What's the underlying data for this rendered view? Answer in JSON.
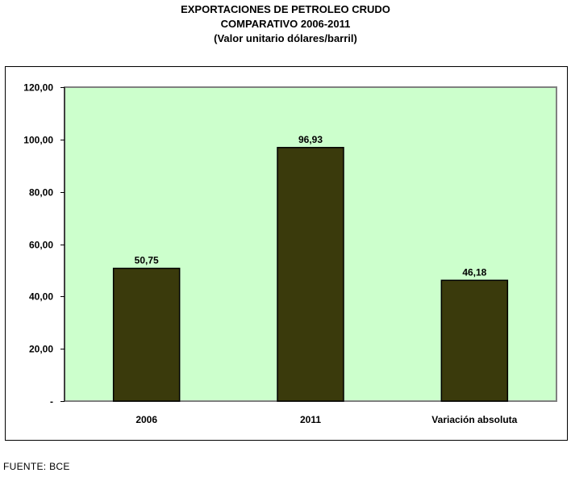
{
  "chart_data": {
    "type": "bar",
    "title": "EXPORTACIONES DE PETROLEO CRUDO",
    "subtitle": "COMPARATIVO 2006-2011",
    "subtitle2": "(Valor unitario dólares/barril)",
    "categories": [
      "2006",
      "2011",
      "Variación absoluta"
    ],
    "values": [
      50.75,
      96.93,
      46.18
    ],
    "data_labels": [
      "50,75",
      "96,93",
      "46,18"
    ],
    "ylim": [
      0,
      120
    ],
    "yticks": [
      0,
      20,
      40,
      60,
      80,
      100,
      120
    ],
    "ytick_labels": [
      "-",
      "20,00",
      "40,00",
      "60,00",
      "80,00",
      "100,00",
      "120,00"
    ],
    "xlabel": "",
    "ylabel": "",
    "grid": false,
    "legend": "none",
    "colors": {
      "bar_fill": "#3a3a0c",
      "bar_stroke": "#000000",
      "plot_background": "#ccffcc",
      "plot_border": "#808080",
      "frame_border": "#000000"
    }
  },
  "source_note": "FUENTE: BCE"
}
